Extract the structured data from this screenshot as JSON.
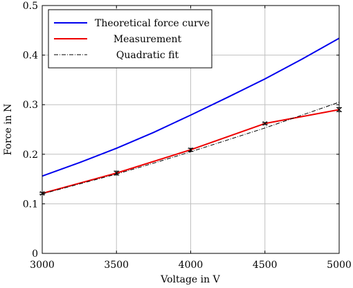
{
  "chart_data": {
    "type": "line",
    "xlabel": "Voltage in V",
    "ylabel": "Force in N",
    "xlim": [
      3000,
      5000
    ],
    "ylim": [
      0,
      0.5
    ],
    "x_ticks": [
      3000,
      3500,
      4000,
      4500,
      5000
    ],
    "y_ticks": [
      0,
      0.1,
      0.2,
      0.3,
      0.4,
      0.5
    ],
    "x_tick_labels": [
      "3000",
      "3500",
      "4000",
      "4500",
      "5000"
    ],
    "y_tick_labels": [
      "0",
      "0.1",
      "0.2",
      "0.3",
      "0.4",
      "0.5"
    ],
    "grid": true,
    "legend_position": "top-left",
    "series": [
      {
        "name": "Theoretical force curve",
        "color": "#0000ee",
        "style": "solid",
        "x": [
          3000,
          3250,
          3500,
          3750,
          4000,
          4250,
          4500,
          4750,
          5000
        ],
        "y": [
          0.156,
          0.183,
          0.212,
          0.244,
          0.279,
          0.315,
          0.352,
          0.392,
          0.434
        ]
      },
      {
        "name": "Measurement",
        "color": "#ee0000",
        "style": "solid",
        "markers": true,
        "x": [
          3000,
          3500,
          4000,
          4500,
          5000
        ],
        "y": [
          0.121,
          0.162,
          0.209,
          0.262,
          0.29
        ],
        "error": [
          0.002,
          0.004,
          0.003,
          0.002,
          0.004
        ]
      },
      {
        "name": "Quadratic fit",
        "color": "#000000",
        "style": "dash-dot",
        "x": [
          3000,
          3250,
          3500,
          3750,
          4000,
          4250,
          4500,
          4750,
          5000
        ],
        "y": [
          0.12,
          0.14,
          0.16,
          0.182,
          0.205,
          0.229,
          0.253,
          0.279,
          0.305
        ]
      }
    ]
  }
}
